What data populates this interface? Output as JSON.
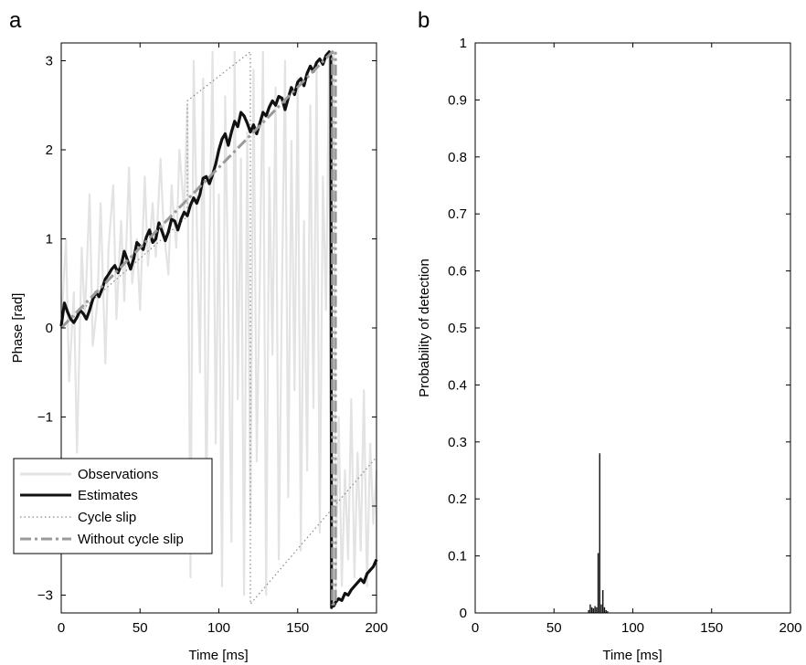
{
  "chart_data": [
    {
      "panel_label": "a",
      "type": "line",
      "xlabel": "Time [ms]",
      "ylabel": "Phase [rad]",
      "xlim": [
        0,
        200
      ],
      "ylim": [
        -3.2,
        3.2
      ],
      "xticks": [
        0,
        50,
        100,
        150,
        200
      ],
      "yticks": [
        -3,
        -2,
        -1,
        0,
        1,
        2,
        3
      ],
      "xtick_labels": [
        "0",
        "50",
        "100",
        "150",
        "200"
      ],
      "ytick_labels": [
        "−3",
        "−2",
        "−1",
        "0",
        "1",
        "2",
        "3"
      ],
      "grid": false,
      "legend_position": "bottom-left",
      "series": [
        {
          "name": "Observations",
          "style": "solid",
          "color": "#e3e3e3",
          "x": [
            0,
            3,
            5,
            8,
            10,
            13,
            15,
            18,
            20,
            23,
            25,
            28,
            30,
            33,
            35,
            38,
            40,
            43,
            45,
            48,
            50,
            53,
            55,
            58,
            60,
            63,
            65,
            68,
            70,
            73,
            75,
            78,
            80,
            82,
            84,
            86,
            88,
            90,
            92,
            94,
            96,
            98,
            100,
            102,
            104,
            106,
            108,
            110,
            112,
            114,
            116,
            118,
            120,
            122,
            124,
            126,
            128,
            130,
            132,
            134,
            136,
            138,
            140,
            142,
            144,
            146,
            148,
            150,
            152,
            154,
            156,
            158,
            160,
            162,
            164,
            166,
            168,
            170,
            171,
            172,
            173,
            174,
            176,
            178,
            180,
            182,
            184,
            186,
            188,
            190,
            192,
            194,
            196,
            198,
            200
          ],
          "y": [
            0.0,
            1.0,
            -0.6,
            0.4,
            -1.4,
            0.9,
            0.1,
            1.5,
            -0.2,
            0.3,
            1.4,
            -0.4,
            0.9,
            1.6,
            0.1,
            1.2,
            0.3,
            1.8,
            0.5,
            1.0,
            0.2,
            1.7,
            0.7,
            1.4,
            0.8,
            1.9,
            1.1,
            0.6,
            1.6,
            0.9,
            2.0,
            1.3,
            2.5,
            -2.8,
            3.0,
            1.2,
            -0.5,
            2.8,
            -2.0,
            0.9,
            3.1,
            -1.3,
            1.5,
            -2.9,
            2.6,
            0.3,
            -2.4,
            3.1,
            -0.8,
            1.9,
            -3.0,
            2.2,
            -2.2,
            2.9,
            -1.5,
            0.6,
            3.1,
            -3.0,
            1.8,
            -0.3,
            2.7,
            -2.6,
            0.4,
            3.0,
            -1.9,
            2.1,
            -0.7,
            2.8,
            -2.5,
            1.2,
            -1.6,
            2.5,
            -0.9,
            2.9,
            -2.3,
            1.7,
            0.2,
            3.1,
            -1.0,
            2.7,
            3.1,
            -3.0,
            -1.0,
            -2.9,
            -1.6,
            -2.6,
            -0.8,
            -2.8,
            -1.4,
            -2.5,
            -0.7,
            -2.9,
            -1.3,
            -2.2,
            -1.6
          ]
        },
        {
          "name": "Estimates",
          "style": "solid",
          "color": "#111111",
          "x": [
            0,
            2,
            4,
            6,
            8,
            10,
            12,
            14,
            16,
            18,
            20,
            22,
            24,
            26,
            28,
            30,
            32,
            34,
            36,
            38,
            40,
            42,
            44,
            46,
            48,
            50,
            52,
            54,
            56,
            58,
            60,
            62,
            64,
            66,
            68,
            70,
            72,
            74,
            76,
            78,
            80,
            82,
            84,
            86,
            88,
            90,
            92,
            94,
            96,
            98,
            100,
            102,
            104,
            106,
            108,
            110,
            112,
            114,
            116,
            118,
            120,
            122,
            124,
            126,
            128,
            130,
            132,
            134,
            136,
            138,
            140,
            142,
            144,
            146,
            148,
            150,
            152,
            154,
            156,
            158,
            160,
            162,
            164,
            166,
            168,
            170,
            171,
            171.5,
            172,
            173,
            174,
            176,
            178,
            180,
            182,
            184,
            186,
            188,
            190,
            192,
            194,
            196,
            198,
            200
          ],
          "y": [
            0.02,
            0.28,
            0.18,
            0.1,
            0.06,
            0.12,
            0.2,
            0.16,
            0.1,
            0.2,
            0.32,
            0.4,
            0.35,
            0.44,
            0.55,
            0.6,
            0.66,
            0.7,
            0.62,
            0.7,
            0.86,
            0.76,
            0.66,
            0.78,
            0.96,
            0.92,
            0.88,
            1.02,
            1.1,
            0.96,
            1.0,
            1.18,
            1.08,
            0.98,
            1.08,
            1.22,
            1.2,
            1.1,
            1.22,
            1.3,
            1.26,
            1.38,
            1.46,
            1.4,
            1.5,
            1.68,
            1.7,
            1.62,
            1.72,
            1.84,
            2.0,
            2.12,
            2.18,
            2.05,
            2.2,
            2.32,
            2.26,
            2.42,
            2.38,
            2.3,
            2.2,
            2.28,
            2.18,
            2.3,
            2.42,
            2.38,
            2.48,
            2.55,
            2.5,
            2.6,
            2.58,
            2.45,
            2.58,
            2.7,
            2.62,
            2.76,
            2.8,
            2.72,
            2.86,
            2.94,
            2.88,
            2.98,
            3.02,
            2.96,
            3.06,
            3.1,
            3.05,
            -3.14,
            -3.1,
            -3.12,
            -3.08,
            -3.04,
            -3.06,
            -2.98,
            -3.0,
            -2.94,
            -2.9,
            -2.86,
            -2.82,
            -2.86,
            -2.76,
            -2.72,
            -2.68,
            -2.6
          ]
        },
        {
          "name": "Cycle slip",
          "style": "dotted",
          "color": "#888888",
          "x": [
            0,
            80,
            80,
            120,
            120,
            200
          ],
          "y": [
            0.0,
            1.25,
            2.55,
            3.1,
            -3.1,
            -1.45
          ]
        },
        {
          "name": "Without cycle slip",
          "style": "dashdot",
          "color": "#9a9a9a",
          "x": [
            0,
            172,
            172,
            174,
            174
          ],
          "y": [
            0.0,
            3.1,
            -3.1,
            -3.1,
            3.1
          ]
        }
      ]
    },
    {
      "panel_label": "b",
      "type": "bar",
      "xlabel": "Time [ms]",
      "ylabel": "Probability of detection",
      "xlim": [
        0,
        200
      ],
      "ylim": [
        0,
        1
      ],
      "xticks": [
        0,
        50,
        100,
        150,
        200
      ],
      "yticks": [
        0,
        0.1,
        0.2,
        0.3,
        0.4,
        0.5,
        0.6,
        0.7,
        0.8,
        0.9,
        1
      ],
      "xtick_labels": [
        "0",
        "50",
        "100",
        "150",
        "200"
      ],
      "ytick_labels": [
        "0",
        "0.1",
        "0.2",
        "0.3",
        "0.4",
        "0.5",
        "0.6",
        "0.7",
        "0.8",
        "0.9",
        "1"
      ],
      "grid": false,
      "bar_color": "#111111",
      "x": [
        72,
        73,
        74,
        75,
        76,
        77,
        78,
        79,
        80,
        81,
        82,
        83,
        84
      ],
      "values": [
        0.005,
        0.015,
        0.01,
        0.008,
        0.012,
        0.01,
        0.105,
        0.28,
        0.015,
        0.04,
        0.01,
        0.005,
        0.003
      ]
    }
  ]
}
